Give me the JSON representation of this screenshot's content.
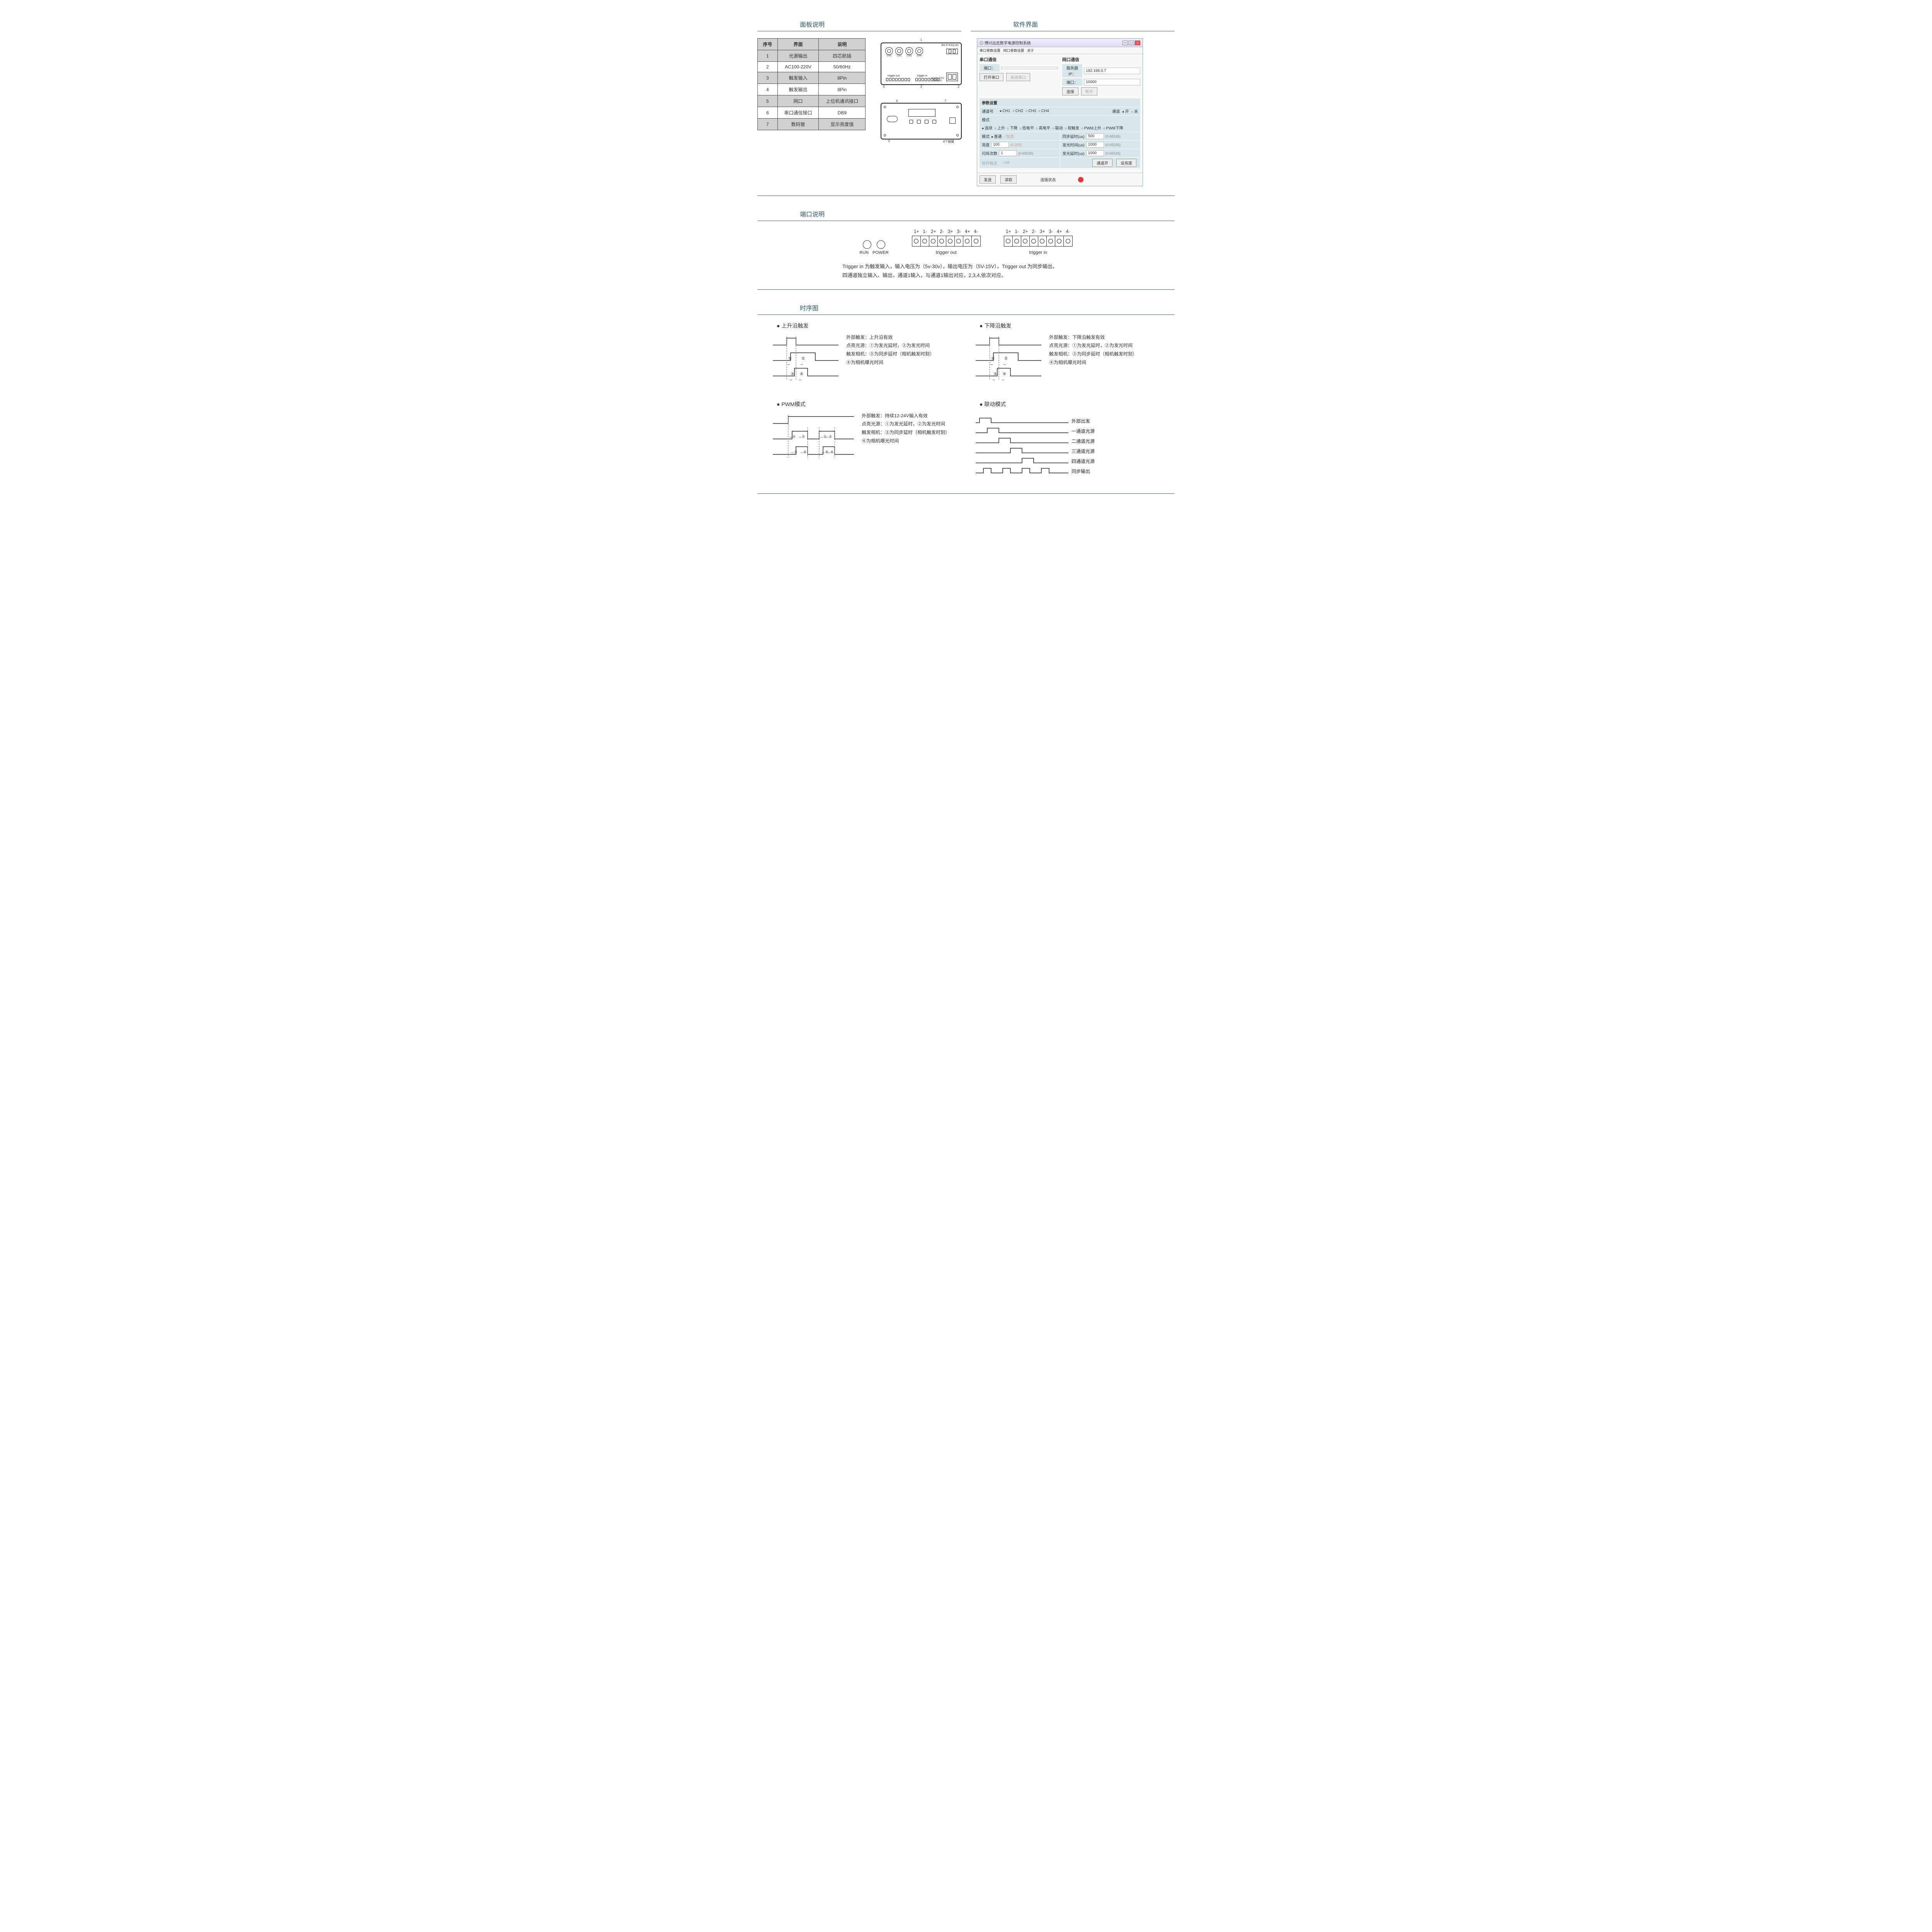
{
  "colors": {
    "accent": "#2a5a6b",
    "table_alt_bg": "#d0d0d0",
    "panel_bg": "#d6e6ea",
    "status_red": "#e33"
  },
  "typography": {
    "body_size_pt": 12,
    "title_size_pt": 16,
    "sw_size_pt": 10
  },
  "section1": {
    "left_title": "面板说明",
    "right_title": "软件界面",
    "panel_table": {
      "headers": [
        "序号",
        "界面",
        "说明"
      ],
      "rows": [
        [
          "1",
          "光源输出",
          "四芯航插"
        ],
        [
          "2",
          "AC100-220V",
          "50/60Hz"
        ],
        [
          "3",
          "触发输入",
          "8Pin"
        ],
        [
          "4",
          "触发输出",
          "8Pin"
        ],
        [
          "5",
          "网口",
          "上位机通讯接口"
        ],
        [
          "6",
          "串口通信接口",
          "DB9"
        ],
        [
          "7",
          "数码管",
          "显示亮度值"
        ]
      ]
    },
    "schematic": {
      "model": "BX-P-KZQ-4D",
      "channels": [
        "CH1",
        "CH2",
        "CH3",
        "CH4"
      ],
      "labels": {
        "trigger_out": "trigger out",
        "trigger_in": "trigger in",
        "ac": "AC100-220V\n50-60Hz"
      },
      "btn_caption": "4个按键",
      "callouts": [
        "1",
        "2",
        "3",
        "4",
        "5",
        "6",
        "7"
      ]
    },
    "software": {
      "window_title": "博兴远志数字电源控制系统",
      "menu": [
        "串口参数设置",
        "网口参数设置",
        "关于"
      ],
      "serial": {
        "header": "串口通信",
        "port_label": "端口：",
        "btn_open": "打开串口",
        "btn_close": "关闭串口"
      },
      "net": {
        "header": "网口通信",
        "ip_label": "服务器IP：",
        "ip": "192.168.0.7",
        "port_label": "端口：",
        "port": "10000",
        "btn_connect": "连接",
        "btn_disconnect": "断开"
      },
      "params": {
        "header": "参数设置",
        "channel_label": "通道号",
        "channels": [
          "CH1",
          "CH2",
          "CH3",
          "CH4"
        ],
        "channel_right": [
          "通道",
          "开",
          "关"
        ],
        "mode1_label": "模式",
        "mode1_opts": [
          "连续",
          "上升",
          "下降",
          "低电平",
          "高电平",
          "联动",
          "软触发",
          "PWM上升",
          "PWM下降"
        ],
        "mode2_label": "模式",
        "mode2_opts": [
          "普通",
          "恒流"
        ],
        "brightness_label": "亮度",
        "brightness_val": "100",
        "brightness_hint": "(0-255)",
        "sync_label": "同步延时(us)",
        "sync_val": "500",
        "sync_hint": "(0-65535)",
        "emit_label": "发光时间(us)",
        "emit_val": "1000",
        "emit_hint": "(0-65535)",
        "flash_label": "闪烁次数",
        "flash_val": "1",
        "flash_hint": "(0-65535)",
        "glow_label": "发光延时(us)",
        "glow_val": "1000",
        "glow_hint": "(0-65535)",
        "soft_trig": "软件触发",
        "all": "All",
        "btn_chan_on": "通道开",
        "btn_bright": "设亮度"
      },
      "bottom": {
        "btn_send": "发送",
        "btn_read": "读取",
        "status_label": "连接状态"
      }
    }
  },
  "section2": {
    "title": "端口说明",
    "pins": [
      "1+",
      "1-",
      "2+",
      "2-",
      "3+",
      "3-",
      "4+",
      "4-"
    ],
    "run": "RUN",
    "power": "POWER",
    "trigger_out": "trigger out",
    "trigger_in": "trigger in",
    "desc1": "Trigger in 为触发输入，输入电压为（5v-30v），输出电压为（5V-15V），Trigger out 为同步输出，",
    "desc2": "四通道独立输入、输出，通道1输入，与通道1输出对应，2,3,4,依次对应。"
  },
  "section3": {
    "title": "时序图",
    "items": [
      {
        "title": "上升沿触发",
        "lines": [
          "外部触发：上升沿有效",
          "点亮光源：①为发光延时，②为发光时间",
          "触发相机：③为同步延时（相机触发时刻）",
          "④为相机曝光时间"
        ],
        "marks": [
          "①",
          "②",
          "③",
          "④"
        ],
        "svg_type": "edge"
      },
      {
        "title": "下降沿触发",
        "lines": [
          "外部触发：下降沿触发有效",
          "点亮光源：①为发光延时，②为发光时间",
          "触发相机：③为同步延时（相机触发时刻）",
          "④为相机曝光时间"
        ],
        "marks": [
          "①",
          "②",
          "③",
          "④"
        ],
        "svg_type": "edge"
      },
      {
        "title": "PWM模式",
        "lines": [
          "外部触发：持续12-24V输入有效",
          "点亮光源：①为发光延时，②为发光时间",
          "触发相机：③为同步延时（相机触发时刻）",
          "④为相机曝光时间"
        ],
        "marks": [
          "①",
          "②",
          "①",
          "②",
          "③",
          "④",
          "③",
          "④"
        ],
        "svg_type": "pwm"
      },
      {
        "title": "联动模式",
        "lines": [
          "外部出发",
          "一通道光源",
          "二通道光源",
          "三通道光源",
          "四通道光源",
          "同步输出"
        ],
        "svg_type": "linkage"
      }
    ]
  }
}
